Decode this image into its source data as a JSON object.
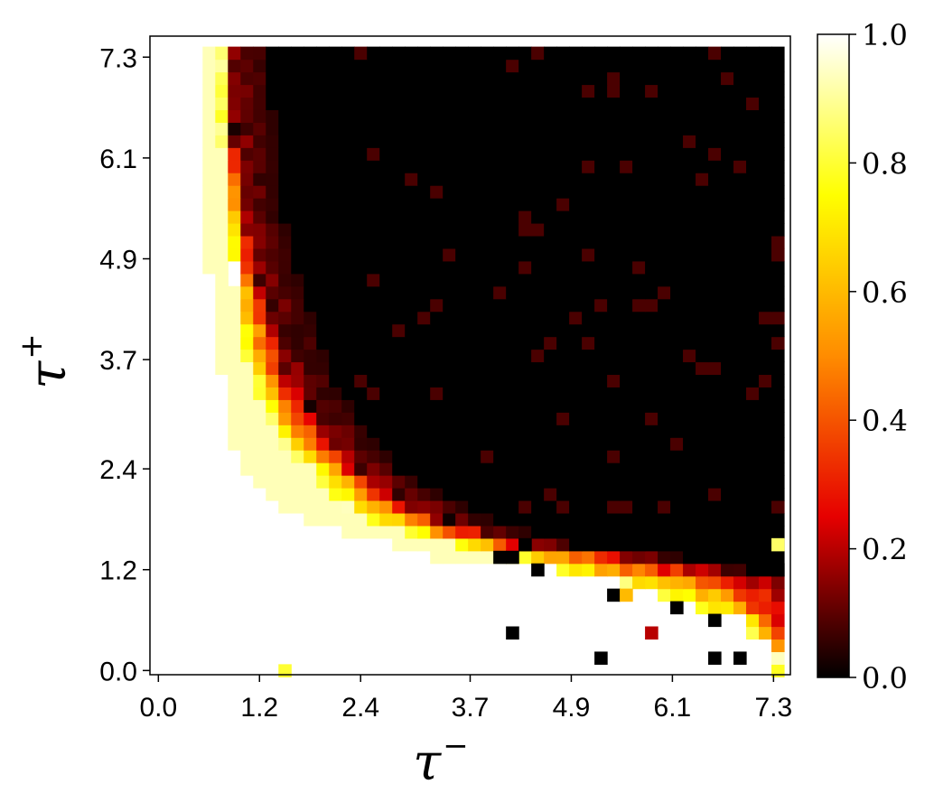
{
  "chart_data": {
    "type": "heatmap",
    "xlabel": "τ",
    "xlabel_sup": "−",
    "ylabel": "τ",
    "ylabel_sup": "+",
    "xlim": [
      -0.1,
      7.5
    ],
    "ylim": [
      -0.05,
      7.55
    ],
    "xticks": [
      0.0,
      1.2,
      2.4,
      3.7,
      4.9,
      6.1,
      7.3
    ],
    "xtick_labels": [
      "0.0",
      "1.2",
      "2.4",
      "3.7",
      "4.9",
      "6.1",
      "7.3"
    ],
    "yticks": [
      0.0,
      1.2,
      2.4,
      3.7,
      4.9,
      6.1,
      7.3
    ],
    "ytick_labels": [
      "0.0",
      "1.2",
      "2.4",
      "3.7",
      "4.9",
      "6.1",
      "7.3"
    ],
    "grid_size": 50,
    "cell_step": 0.15,
    "colormap": "hot",
    "colorbar": {
      "range": [
        0.0,
        1.0
      ],
      "ticks": [
        0.0,
        0.2,
        0.4,
        0.6,
        0.8,
        1.0
      ],
      "tick_labels": [
        "0.0",
        "0.2",
        "0.4",
        "0.6",
        "0.8",
        "1.0"
      ],
      "stops": [
        "#000000",
        "#e60000",
        "#ff8c00",
        "#ffff00",
        "#ffffff"
      ]
    },
    "boundary_inner_x": [
      7.35,
      7.35,
      7.2,
      7.05,
      6.9,
      6.45,
      6.0,
      5.4,
      4.65,
      4.05,
      3.45,
      3.0,
      2.55,
      2.25,
      2.1,
      1.95,
      1.8,
      1.65,
      1.5,
      1.4,
      1.3,
      1.25,
      1.2,
      1.15,
      1.1,
      1.05,
      1.0,
      1.0,
      0.95,
      0.95,
      0.9,
      0.9,
      0.9,
      0.85,
      0.85,
      0.85,
      0.85,
      0.8,
      0.8,
      0.8,
      0.8,
      0.8,
      0.75,
      0.75,
      0.75,
      0.75,
      0.75,
      0.75,
      0.75,
      0.75
    ],
    "boundary_outer_x": [
      7.5,
      7.5,
      7.5,
      7.5,
      7.5,
      7.5,
      7.5,
      7.5,
      6.6,
      5.7,
      4.5,
      3.9,
      3.45,
      3.15,
      2.85,
      2.6,
      2.4,
      2.25,
      2.1,
      2.0,
      1.9,
      1.8,
      1.7,
      1.62,
      1.55,
      1.5,
      1.45,
      1.4,
      1.35,
      1.3,
      1.25,
      1.2,
      1.15,
      1.12,
      1.1,
      1.05,
      1.02,
      1.0,
      0.98,
      0.96,
      0.95,
      0.93,
      0.92,
      0.9,
      0.9,
      0.88,
      0.87,
      0.86,
      0.85,
      0.85
    ],
    "light_band_rows": [
      [],
      [],
      [],
      [],
      [],
      [],
      [],
      [],
      [
        [
          7.45,
          7.5
        ]
      ],
      [
        [
          3.3,
          4.3
        ],
        [
          4.8,
          7.4
        ],
        [
          7.45,
          7.5
        ]
      ],
      [
        [
          2.85,
          4.2
        ],
        [
          4.5,
          7.5
        ]
      ],
      [
        [
          2.25,
          5.4
        ],
        [
          5.7,
          7.5
        ]
      ],
      [
        [
          1.8,
          5.7
        ],
        [
          6.3,
          7.5
        ]
      ],
      [
        [
          1.5,
          5.1
        ]
      ],
      [
        [
          1.3,
          3.6
        ]
      ],
      [
        [
          1.2,
          2.85
        ]
      ],
      [
        [
          1.05,
          2.4
        ]
      ],
      [
        [
          0.95,
          2.1
        ]
      ],
      [
        [
          0.9,
          1.9
        ]
      ],
      [
        [
          0.9,
          1.75
        ]
      ],
      [
        [
          0.9,
          1.6
        ]
      ],
      [
        [
          0.8,
          1.5
        ]
      ],
      [
        [
          0.8,
          1.4
        ]
      ],
      [
        [
          0.8,
          1.3
        ]
      ],
      [
        [
          0.75,
          1.2
        ]
      ],
      [
        [
          0.75,
          1.1
        ]
      ],
      [
        [
          0.75,
          1.05
        ]
      ],
      [
        [
          0.75,
          1.0
        ]
      ],
      [
        [
          0.75,
          0.95
        ]
      ],
      [
        [
          0.7,
          0.95
        ]
      ],
      [
        [
          0.7,
          0.9
        ]
      ],
      [
        [
          0.7,
          0.85
        ]
      ],
      [
        [
          0.6,
          0.85
        ]
      ],
      [
        [
          0.6,
          0.8
        ]
      ],
      [
        [
          0.6,
          0.8
        ]
      ],
      [
        [
          0.6,
          0.8
        ]
      ],
      [
        [
          0.6,
          0.8
        ]
      ],
      [
        [
          0.6,
          0.8
        ]
      ],
      [
        [
          0.6,
          0.75
        ]
      ],
      [
        [
          0.6,
          0.75
        ]
      ],
      [
        [
          0.6,
          0.75
        ]
      ],
      [
        [
          0.6,
          0.75
        ]
      ],
      [
        [
          0.6,
          0.75
        ]
      ],
      [
        [
          0.6,
          0.75
        ]
      ],
      [
        [
          0.6,
          0.75
        ]
      ],
      [
        [
          0.6,
          0.75
        ]
      ],
      [
        [
          0.6,
          0.75
        ]
      ],
      [
        [
          0.6,
          0.75
        ]
      ],
      [
        [
          0.6,
          0.75
        ]
      ],
      [
        [
          0.6,
          0.75
        ]
      ]
    ],
    "outliers": [
      {
        "x": 1.5,
        "y": 0.0,
        "value": 0.8
      },
      {
        "x": 5.25,
        "y": 0.15,
        "value": 0.0
      },
      {
        "x": 6.6,
        "y": 0.15,
        "value": 0.0
      },
      {
        "x": 6.9,
        "y": 0.15,
        "value": 0.0
      },
      {
        "x": 4.2,
        "y": 0.45,
        "value": 0.0
      },
      {
        "x": 5.85,
        "y": 0.45,
        "value": 0.2
      },
      {
        "x": 6.6,
        "y": 0.6,
        "value": 0.0
      },
      {
        "x": 6.15,
        "y": 0.75,
        "value": 0.0
      },
      {
        "x": 5.4,
        "y": 0.9,
        "value": 0.0
      },
      {
        "x": 5.55,
        "y": 0.9,
        "value": 0.6
      },
      {
        "x": 4.5,
        "y": 1.2,
        "value": 0.0
      },
      {
        "x": 7.35,
        "y": 1.2,
        "value": 0.0
      },
      {
        "x": 4.05,
        "y": 1.35,
        "value": 0.0
      },
      {
        "x": 4.2,
        "y": 1.35,
        "value": 0.0
      },
      {
        "x": 4.35,
        "y": 1.5,
        "value": 0.0
      },
      {
        "x": 6.75,
        "y": 1.5,
        "value": 0.0
      },
      {
        "x": 7.35,
        "y": 1.5,
        "value": 0.85
      },
      {
        "x": 4.05,
        "y": 2.4,
        "value": 0.0
      }
    ]
  }
}
